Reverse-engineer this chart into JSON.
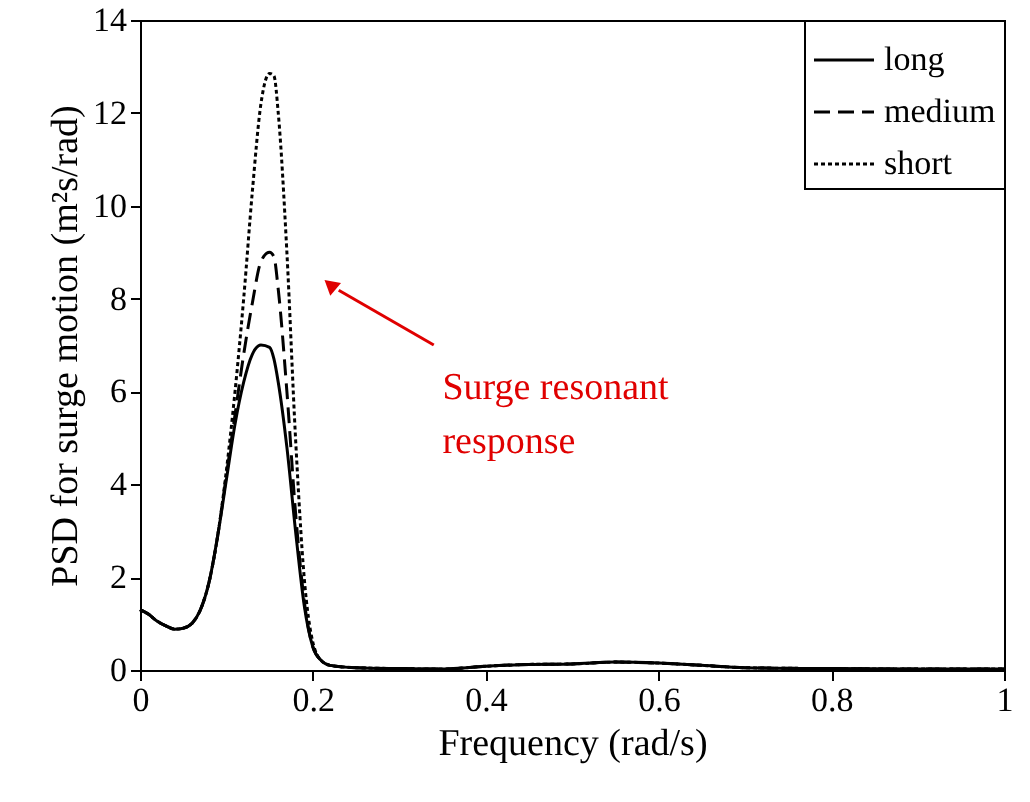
{
  "chart_data": {
    "type": "line",
    "xlabel": "Frequency (rad/s)",
    "ylabel": "PSD for surge motion (m²s/rad)",
    "xlim": [
      0,
      1
    ],
    "ylim": [
      0,
      14
    ],
    "xticks": [
      0,
      0.2,
      0.4,
      0.6,
      0.8,
      1
    ],
    "yticks": [
      0,
      2,
      4,
      6,
      8,
      10,
      12,
      14
    ],
    "grid": false,
    "legend": "top right",
    "x": [
      0,
      0.01,
      0.02,
      0.03,
      0.04,
      0.05,
      0.06,
      0.07,
      0.08,
      0.09,
      0.1,
      0.11,
      0.12,
      0.13,
      0.14,
      0.15,
      0.155,
      0.16,
      0.17,
      0.18,
      0.19,
      0.2,
      0.21,
      0.22,
      0.25,
      0.3,
      0.35,
      0.4,
      0.45,
      0.5,
      0.55,
      0.6,
      0.65,
      0.7,
      0.8,
      0.9,
      1
    ],
    "series": [
      {
        "name": "long",
        "color": "#000000",
        "line_style": "solid",
        "values": [
          1.3,
          1.2,
          1.05,
          0.95,
          0.88,
          0.9,
          1.0,
          1.3,
          1.9,
          2.9,
          4.1,
          5.3,
          6.2,
          6.8,
          7.0,
          6.95,
          6.7,
          6.2,
          4.8,
          3.0,
          1.4,
          0.5,
          0.2,
          0.1,
          0.05,
          0.03,
          0.02,
          0.08,
          0.12,
          0.13,
          0.17,
          0.15,
          0.1,
          0.05,
          0.03,
          0.02,
          0.02
        ]
      },
      {
        "name": "medium",
        "color": "#000000",
        "line_style": "dashed",
        "values": [
          1.3,
          1.2,
          1.05,
          0.95,
          0.88,
          0.9,
          1.0,
          1.3,
          1.9,
          2.9,
          4.2,
          5.5,
          6.8,
          7.9,
          8.8,
          9.0,
          8.9,
          8.2,
          6.0,
          3.4,
          1.5,
          0.5,
          0.2,
          0.1,
          0.05,
          0.03,
          0.02,
          0.08,
          0.12,
          0.13,
          0.17,
          0.15,
          0.1,
          0.05,
          0.03,
          0.02,
          0.02
        ]
      },
      {
        "name": "short",
        "color": "#000000",
        "line_style": "dotted",
        "values": [
          1.3,
          1.2,
          1.05,
          0.95,
          0.88,
          0.9,
          1.0,
          1.3,
          1.9,
          2.9,
          4.3,
          6.0,
          8.0,
          10.3,
          12.2,
          12.85,
          12.8,
          12.0,
          9.0,
          5.0,
          2.0,
          0.6,
          0.2,
          0.1,
          0.05,
          0.03,
          0.02,
          0.08,
          0.12,
          0.13,
          0.17,
          0.15,
          0.1,
          0.05,
          0.03,
          0.02,
          0.02
        ]
      }
    ],
    "annotations": [
      {
        "text": "Surge resonant response",
        "x": 0.22,
        "y": 8.3
      }
    ]
  }
}
